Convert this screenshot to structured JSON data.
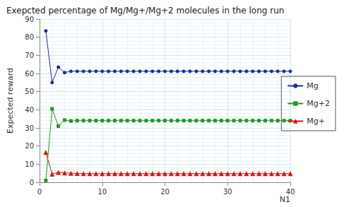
{
  "chart_data": {
    "type": "line",
    "title": "Exepcted percentage of Mg/Mg+/Mg+2 molecules in the long run",
    "x_label": "N1",
    "y_label": "Expected reward",
    "x": [
      1,
      2,
      3,
      4,
      5,
      6,
      7,
      8,
      9,
      10,
      11,
      12,
      13,
      14,
      15,
      16,
      17,
      18,
      19,
      20,
      21,
      22,
      23,
      24,
      25,
      26,
      27,
      28,
      29,
      30,
      31,
      32,
      33,
      34,
      35,
      36,
      37,
      38,
      39,
      40
    ],
    "series": [
      {
        "name": "Mg",
        "color": "#1c2a9e",
        "marker": "circle",
        "line_style": "solid",
        "values": [
          83.5,
          55,
          63.5,
          60.5,
          61.2,
          61.2,
          61.2,
          61.2,
          61.2,
          61.2,
          61.2,
          61.2,
          61.2,
          61.2,
          61.2,
          61.2,
          61.2,
          61.2,
          61.2,
          61.2,
          61.2,
          61.2,
          61.2,
          61.2,
          61.2,
          61.2,
          61.2,
          61.2,
          61.2,
          61.2,
          61.2,
          61.2,
          61.2,
          61.2,
          61.2,
          61.2,
          61.2,
          61.2,
          61.2,
          61.2
        ]
      },
      {
        "name": "Mg+2",
        "color": "#1f9a1f",
        "marker": "square",
        "line_style": "solid",
        "values": [
          1,
          40.5,
          31,
          34.3,
          33.8,
          34,
          34,
          34,
          34,
          34,
          34,
          34,
          34,
          34,
          34,
          34,
          34,
          34,
          34,
          34,
          34,
          34,
          34,
          34,
          34,
          34,
          34,
          34,
          34,
          34,
          34,
          34,
          34,
          34,
          34,
          34,
          34,
          34,
          34,
          34
        ]
      },
      {
        "name": "Mg+",
        "color": "#e01010",
        "marker": "triangle",
        "line_style": "solid",
        "values": [
          16.5,
          4.5,
          5.5,
          5.2,
          5,
          4.9,
          4.8,
          4.8,
          4.8,
          4.8,
          4.8,
          4.8,
          4.8,
          4.8,
          4.8,
          4.8,
          4.8,
          4.8,
          4.8,
          4.8,
          4.8,
          4.8,
          4.8,
          4.8,
          4.8,
          4.8,
          4.8,
          4.8,
          4.8,
          4.8,
          4.8,
          4.8,
          4.8,
          4.8,
          4.8,
          4.8,
          4.8,
          4.8,
          4.8,
          4.8
        ]
      }
    ],
    "xlim": [
      0,
      40
    ],
    "xticks": [
      0,
      10,
      20,
      30,
      40
    ],
    "ylim": [
      0,
      90
    ],
    "yticks": [
      0,
      10,
      20,
      30,
      40,
      50,
      60,
      70,
      80,
      90
    ],
    "grid": true,
    "legend": "right"
  }
}
